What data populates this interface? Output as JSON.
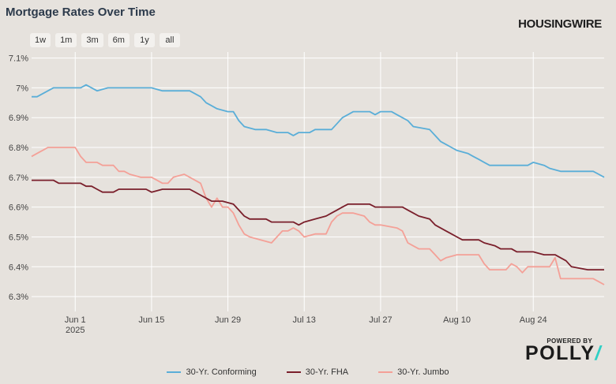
{
  "title": "Mortgage Rates Over Time",
  "brand": "HOUSINGWIRE",
  "range_buttons": [
    "1w",
    "1m",
    "3m",
    "6m",
    "1y",
    "all"
  ],
  "powered_by": {
    "label": "POWERED BY",
    "name": "POLLY",
    "slash": "/",
    "slash_color": "#2fd0c5"
  },
  "colors": {
    "conforming": "#5aaed8",
    "fha": "#7a1f2b",
    "jumbo": "#f4a097",
    "grid": "#ffffff",
    "background": "#e6e2dd"
  },
  "chart_data": {
    "type": "line",
    "title": "Mortgage Rates Over Time",
    "xlim": [
      "2025-05-24",
      "2025-09-06"
    ],
    "ylim": [
      6.25,
      7.12
    ],
    "y_ticks": [
      6.3,
      6.4,
      6.5,
      6.6,
      6.7,
      6.8,
      6.9,
      7.0,
      7.1
    ],
    "y_tick_labels": [
      "6.3%",
      "6.4%",
      "6.5%",
      "6.6%",
      "6.7%",
      "6.8%",
      "6.9%",
      "7%",
      "7.1%"
    ],
    "x_ticks": [
      "2025-06-01",
      "2025-06-15",
      "2025-06-29",
      "2025-07-13",
      "2025-07-27",
      "2025-08-10",
      "2025-08-24"
    ],
    "x_tick_labels": [
      "Jun 1",
      "Jun 15",
      "Jun 29",
      "Jul 13",
      "Jul 27",
      "Aug 10",
      "Aug 24"
    ],
    "x_tick_sublabels": [
      "2025",
      "",
      "",
      "",
      "",
      "",
      ""
    ],
    "grid": true,
    "legend_position": "bottom",
    "series": [
      {
        "name": "30-Yr. Conforming",
        "color": "#5aaed8",
        "points": [
          [
            "2025-05-24",
            6.97
          ],
          [
            "2025-05-25",
            6.97
          ],
          [
            "2025-05-26",
            6.98
          ],
          [
            "2025-05-27",
            6.99
          ],
          [
            "2025-05-28",
            7.0
          ],
          [
            "2025-06-01",
            7.0
          ],
          [
            "2025-06-02",
            7.0
          ],
          [
            "2025-06-03",
            7.01
          ],
          [
            "2025-06-04",
            7.0
          ],
          [
            "2025-06-05",
            6.99
          ],
          [
            "2025-06-07",
            7.0
          ],
          [
            "2025-06-10",
            7.0
          ],
          [
            "2025-06-12",
            7.0
          ],
          [
            "2025-06-15",
            7.0
          ],
          [
            "2025-06-17",
            6.99
          ],
          [
            "2025-06-20",
            6.99
          ],
          [
            "2025-06-22",
            6.99
          ],
          [
            "2025-06-24",
            6.97
          ],
          [
            "2025-06-25",
            6.95
          ],
          [
            "2025-06-26",
            6.94
          ],
          [
            "2025-06-27",
            6.93
          ],
          [
            "2025-06-29",
            6.92
          ],
          [
            "2025-06-30",
            6.92
          ],
          [
            "2025-07-01",
            6.89
          ],
          [
            "2025-07-02",
            6.87
          ],
          [
            "2025-07-04",
            6.86
          ],
          [
            "2025-07-06",
            6.86
          ],
          [
            "2025-07-08",
            6.85
          ],
          [
            "2025-07-10",
            6.85
          ],
          [
            "2025-07-11",
            6.84
          ],
          [
            "2025-07-12",
            6.85
          ],
          [
            "2025-07-14",
            6.85
          ],
          [
            "2025-07-15",
            6.86
          ],
          [
            "2025-07-18",
            6.86
          ],
          [
            "2025-07-19",
            6.88
          ],
          [
            "2025-07-20",
            6.9
          ],
          [
            "2025-07-21",
            6.91
          ],
          [
            "2025-07-22",
            6.92
          ],
          [
            "2025-07-25",
            6.92
          ],
          [
            "2025-07-26",
            6.91
          ],
          [
            "2025-07-27",
            6.92
          ],
          [
            "2025-07-29",
            6.92
          ],
          [
            "2025-07-30",
            6.91
          ],
          [
            "2025-07-31",
            6.9
          ],
          [
            "2025-08-01",
            6.89
          ],
          [
            "2025-08-02",
            6.87
          ],
          [
            "2025-08-05",
            6.86
          ],
          [
            "2025-08-06",
            6.84
          ],
          [
            "2025-08-07",
            6.82
          ],
          [
            "2025-08-08",
            6.81
          ],
          [
            "2025-08-09",
            6.8
          ],
          [
            "2025-08-10",
            6.79
          ],
          [
            "2025-08-12",
            6.78
          ],
          [
            "2025-08-13",
            6.77
          ],
          [
            "2025-08-14",
            6.76
          ],
          [
            "2025-08-15",
            6.75
          ],
          [
            "2025-08-16",
            6.74
          ],
          [
            "2025-08-20",
            6.74
          ],
          [
            "2025-08-23",
            6.74
          ],
          [
            "2025-08-24",
            6.75
          ],
          [
            "2025-08-26",
            6.74
          ],
          [
            "2025-08-27",
            6.73
          ],
          [
            "2025-08-29",
            6.72
          ],
          [
            "2025-09-01",
            6.72
          ],
          [
            "2025-09-04",
            6.72
          ],
          [
            "2025-09-05",
            6.71
          ],
          [
            "2025-09-06",
            6.7
          ]
        ]
      },
      {
        "name": "30-Yr. FHA",
        "color": "#7a1f2b",
        "points": [
          [
            "2025-05-24",
            6.69
          ],
          [
            "2025-05-28",
            6.69
          ],
          [
            "2025-05-29",
            6.68
          ],
          [
            "2025-06-02",
            6.68
          ],
          [
            "2025-06-03",
            6.67
          ],
          [
            "2025-06-04",
            6.67
          ],
          [
            "2025-06-05",
            6.66
          ],
          [
            "2025-06-06",
            6.65
          ],
          [
            "2025-06-08",
            6.65
          ],
          [
            "2025-06-09",
            6.66
          ],
          [
            "2025-06-14",
            6.66
          ],
          [
            "2025-06-15",
            6.65
          ],
          [
            "2025-06-17",
            6.66
          ],
          [
            "2025-06-22",
            6.66
          ],
          [
            "2025-06-23",
            6.65
          ],
          [
            "2025-06-24",
            6.64
          ],
          [
            "2025-06-25",
            6.63
          ],
          [
            "2025-06-26",
            6.62
          ],
          [
            "2025-06-28",
            6.62
          ],
          [
            "2025-06-30",
            6.61
          ],
          [
            "2025-07-01",
            6.59
          ],
          [
            "2025-07-02",
            6.57
          ],
          [
            "2025-07-03",
            6.56
          ],
          [
            "2025-07-06",
            6.56
          ],
          [
            "2025-07-07",
            6.55
          ],
          [
            "2025-07-11",
            6.55
          ],
          [
            "2025-07-12",
            6.54
          ],
          [
            "2025-07-13",
            6.55
          ],
          [
            "2025-07-15",
            6.56
          ],
          [
            "2025-07-17",
            6.57
          ],
          [
            "2025-07-18",
            6.58
          ],
          [
            "2025-07-19",
            6.59
          ],
          [
            "2025-07-20",
            6.6
          ],
          [
            "2025-07-21",
            6.61
          ],
          [
            "2025-07-25",
            6.61
          ],
          [
            "2025-07-26",
            6.6
          ],
          [
            "2025-07-31",
            6.6
          ],
          [
            "2025-08-01",
            6.59
          ],
          [
            "2025-08-02",
            6.58
          ],
          [
            "2025-08-03",
            6.57
          ],
          [
            "2025-08-05",
            6.56
          ],
          [
            "2025-08-06",
            6.54
          ],
          [
            "2025-08-08",
            6.52
          ],
          [
            "2025-08-09",
            6.51
          ],
          [
            "2025-08-10",
            6.5
          ],
          [
            "2025-08-11",
            6.49
          ],
          [
            "2025-08-14",
            6.49
          ],
          [
            "2025-08-15",
            6.48
          ],
          [
            "2025-08-17",
            6.47
          ],
          [
            "2025-08-18",
            6.46
          ],
          [
            "2025-08-20",
            6.46
          ],
          [
            "2025-08-21",
            6.45
          ],
          [
            "2025-08-23",
            6.45
          ],
          [
            "2025-08-24",
            6.45
          ],
          [
            "2025-08-26",
            6.44
          ],
          [
            "2025-08-28",
            6.44
          ],
          [
            "2025-08-29",
            6.43
          ],
          [
            "2025-08-30",
            6.42
          ],
          [
            "2025-08-31",
            6.4
          ],
          [
            "2025-09-03",
            6.39
          ],
          [
            "2025-09-06",
            6.39
          ]
        ]
      },
      {
        "name": "30-Yr. Jumbo",
        "color": "#f4a097",
        "points": [
          [
            "2025-05-24",
            6.77
          ],
          [
            "2025-05-25",
            6.78
          ],
          [
            "2025-05-26",
            6.79
          ],
          [
            "2025-05-27",
            6.8
          ],
          [
            "2025-06-01",
            6.8
          ],
          [
            "2025-06-02",
            6.77
          ],
          [
            "2025-06-03",
            6.75
          ],
          [
            "2025-06-05",
            6.75
          ],
          [
            "2025-06-06",
            6.74
          ],
          [
            "2025-06-08",
            6.74
          ],
          [
            "2025-06-09",
            6.72
          ],
          [
            "2025-06-10",
            6.72
          ],
          [
            "2025-06-11",
            6.71
          ],
          [
            "2025-06-13",
            6.7
          ],
          [
            "2025-06-15",
            6.7
          ],
          [
            "2025-06-16",
            6.69
          ],
          [
            "2025-06-17",
            6.68
          ],
          [
            "2025-06-18",
            6.68
          ],
          [
            "2025-06-19",
            6.7
          ],
          [
            "2025-06-21",
            6.71
          ],
          [
            "2025-06-22",
            6.7
          ],
          [
            "2025-06-24",
            6.68
          ],
          [
            "2025-06-25",
            6.63
          ],
          [
            "2025-06-26",
            6.6
          ],
          [
            "2025-06-27",
            6.63
          ],
          [
            "2025-06-28",
            6.6
          ],
          [
            "2025-06-29",
            6.6
          ],
          [
            "2025-06-30",
            6.58
          ],
          [
            "2025-07-01",
            6.54
          ],
          [
            "2025-07-02",
            6.51
          ],
          [
            "2025-07-03",
            6.5
          ],
          [
            "2025-07-05",
            6.49
          ],
          [
            "2025-07-07",
            6.48
          ],
          [
            "2025-07-09",
            6.52
          ],
          [
            "2025-07-10",
            6.52
          ],
          [
            "2025-07-11",
            6.53
          ],
          [
            "2025-07-12",
            6.52
          ],
          [
            "2025-07-13",
            6.5
          ],
          [
            "2025-07-15",
            6.51
          ],
          [
            "2025-07-17",
            6.51
          ],
          [
            "2025-07-18",
            6.55
          ],
          [
            "2025-07-19",
            6.57
          ],
          [
            "2025-07-20",
            6.58
          ],
          [
            "2025-07-22",
            6.58
          ],
          [
            "2025-07-24",
            6.57
          ],
          [
            "2025-07-25",
            6.55
          ],
          [
            "2025-07-26",
            6.54
          ],
          [
            "2025-07-27",
            6.54
          ],
          [
            "2025-07-30",
            6.53
          ],
          [
            "2025-07-31",
            6.52
          ],
          [
            "2025-08-01",
            6.48
          ],
          [
            "2025-08-02",
            6.47
          ],
          [
            "2025-08-03",
            6.46
          ],
          [
            "2025-08-05",
            6.46
          ],
          [
            "2025-08-06",
            6.44
          ],
          [
            "2025-08-07",
            6.42
          ],
          [
            "2025-08-08",
            6.43
          ],
          [
            "2025-08-10",
            6.44
          ],
          [
            "2025-08-12",
            6.44
          ],
          [
            "2025-08-14",
            6.44
          ],
          [
            "2025-08-15",
            6.41
          ],
          [
            "2025-08-16",
            6.39
          ],
          [
            "2025-08-19",
            6.39
          ],
          [
            "2025-08-20",
            6.41
          ],
          [
            "2025-08-21",
            6.4
          ],
          [
            "2025-08-22",
            6.38
          ],
          [
            "2025-08-23",
            6.4
          ],
          [
            "2025-08-27",
            6.4
          ],
          [
            "2025-08-28",
            6.43
          ],
          [
            "2025-08-29",
            6.36
          ],
          [
            "2025-09-04",
            6.36
          ],
          [
            "2025-09-05",
            6.35
          ],
          [
            "2025-09-06",
            6.34
          ]
        ]
      }
    ]
  }
}
